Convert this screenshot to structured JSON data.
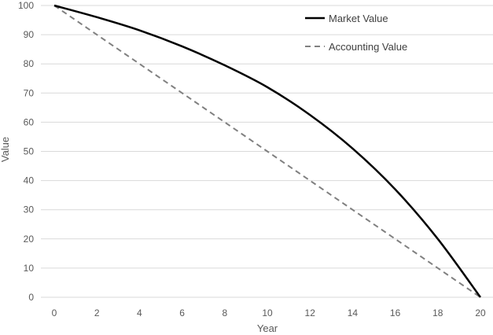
{
  "chart_data": {
    "type": "line",
    "title": "",
    "xlabel": "Year",
    "ylabel": "Value",
    "xlim": [
      0,
      20
    ],
    "ylim": [
      0,
      100
    ],
    "x_ticks": [
      0,
      2,
      4,
      6,
      8,
      10,
      12,
      14,
      16,
      18,
      20
    ],
    "y_ticks": [
      0,
      10,
      20,
      30,
      40,
      50,
      60,
      70,
      80,
      90,
      100
    ],
    "grid": "horizontal",
    "legend_position": "top-right",
    "series": [
      {
        "name": "Market Value",
        "style": "solid",
        "color": "#000000",
        "x": [
          0,
          2,
          4,
          6,
          8,
          10,
          12,
          14,
          16,
          18,
          20
        ],
        "y": [
          100,
          96,
          91.5,
          86,
          79.5,
          72,
          62.5,
          51,
          37,
          20,
          0
        ]
      },
      {
        "name": "Accounting Value",
        "style": "dashed",
        "color": "#808080",
        "x": [
          0,
          2,
          4,
          6,
          8,
          10,
          12,
          14,
          16,
          18,
          20
        ],
        "y": [
          100,
          90,
          80,
          70,
          60,
          50,
          40,
          30,
          20,
          10,
          0
        ]
      }
    ]
  }
}
